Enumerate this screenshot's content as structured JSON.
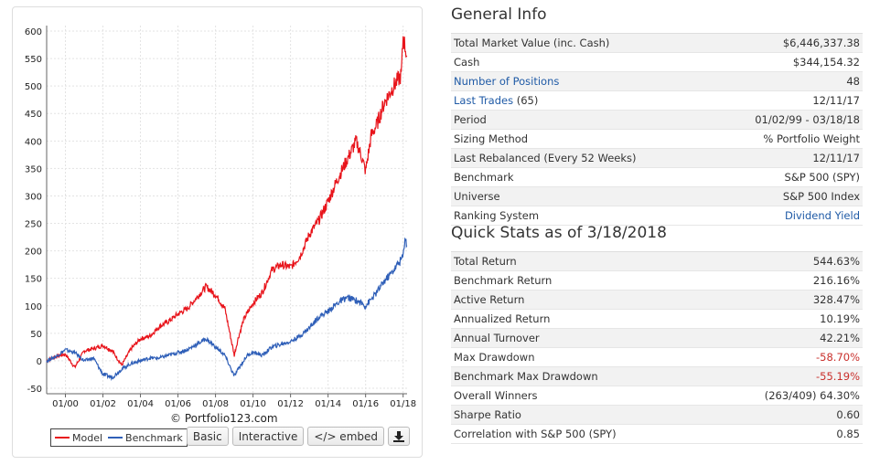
{
  "chart_data": {
    "type": "line",
    "credit": "© Portfolio123.com",
    "x_tick_labels": [
      "01/00",
      "01/02",
      "01/04",
      "01/06",
      "01/08",
      "01/10",
      "01/12",
      "01/14",
      "01/16",
      "01/18"
    ],
    "x_range": [
      "1999-01-02",
      "2018-03-18"
    ],
    "ylim": [
      -60,
      610
    ],
    "y_ticks": [
      -50,
      0,
      50,
      100,
      150,
      200,
      250,
      300,
      350,
      400,
      450,
      500,
      550,
      600
    ],
    "grid": true,
    "legend_position": "bottom-left",
    "series": [
      {
        "name": "Model",
        "color": "#e8141b",
        "points": [
          [
            1999.0,
            0
          ],
          [
            1999.5,
            8
          ],
          [
            2000.0,
            12
          ],
          [
            2000.5,
            -12
          ],
          [
            2001.0,
            18
          ],
          [
            2001.5,
            22
          ],
          [
            2002.0,
            28
          ],
          [
            2002.5,
            18
          ],
          [
            2003.0,
            -8
          ],
          [
            2003.5,
            22
          ],
          [
            2004.0,
            40
          ],
          [
            2004.5,
            45
          ],
          [
            2005.0,
            62
          ],
          [
            2005.5,
            72
          ],
          [
            2006.0,
            85
          ],
          [
            2006.5,
            95
          ],
          [
            2007.0,
            115
          ],
          [
            2007.5,
            135
          ],
          [
            2008.0,
            120
          ],
          [
            2008.5,
            95
          ],
          [
            2009.0,
            10
          ],
          [
            2009.2,
            40
          ],
          [
            2009.5,
            75
          ],
          [
            2010.0,
            105
          ],
          [
            2010.5,
            125
          ],
          [
            2011.0,
            165
          ],
          [
            2011.5,
            175
          ],
          [
            2012.0,
            170
          ],
          [
            2012.5,
            190
          ],
          [
            2013.0,
            230
          ],
          [
            2013.5,
            255
          ],
          [
            2014.0,
            290
          ],
          [
            2014.5,
            330
          ],
          [
            2015.0,
            365
          ],
          [
            2015.5,
            400
          ],
          [
            2015.8,
            370
          ],
          [
            2016.0,
            345
          ],
          [
            2016.3,
            410
          ],
          [
            2016.6,
            430
          ],
          [
            2017.0,
            470
          ],
          [
            2017.5,
            500
          ],
          [
            2017.9,
            520
          ],
          [
            2018.0,
            590
          ],
          [
            2018.2,
            555
          ]
        ]
      },
      {
        "name": "Benchmark",
        "color": "#2f5fb8",
        "points": [
          [
            1999.0,
            0
          ],
          [
            1999.5,
            8
          ],
          [
            2000.0,
            20
          ],
          [
            2000.5,
            15
          ],
          [
            2001.0,
            0
          ],
          [
            2001.5,
            5
          ],
          [
            2002.0,
            -25
          ],
          [
            2002.5,
            -30
          ],
          [
            2003.0,
            -15
          ],
          [
            2003.5,
            -5
          ],
          [
            2004.0,
            0
          ],
          [
            2004.5,
            5
          ],
          [
            2005.0,
            5
          ],
          [
            2005.5,
            10
          ],
          [
            2006.0,
            15
          ],
          [
            2006.5,
            20
          ],
          [
            2007.0,
            30
          ],
          [
            2007.5,
            40
          ],
          [
            2008.0,
            25
          ],
          [
            2008.5,
            10
          ],
          [
            2009.0,
            -28
          ],
          [
            2009.3,
            -10
          ],
          [
            2009.7,
            10
          ],
          [
            2010.0,
            15
          ],
          [
            2010.5,
            10
          ],
          [
            2011.0,
            25
          ],
          [
            2011.5,
            30
          ],
          [
            2012.0,
            35
          ],
          [
            2012.5,
            45
          ],
          [
            2013.0,
            60
          ],
          [
            2013.5,
            80
          ],
          [
            2014.0,
            90
          ],
          [
            2014.5,
            105
          ],
          [
            2015.0,
            115
          ],
          [
            2015.5,
            110
          ],
          [
            2016.0,
            100
          ],
          [
            2016.5,
            120
          ],
          [
            2017.0,
            145
          ],
          [
            2017.5,
            165
          ],
          [
            2018.0,
            190
          ],
          [
            2018.1,
            225
          ],
          [
            2018.2,
            210
          ]
        ]
      }
    ]
  },
  "buttons": {
    "basic": "Basic",
    "interactive": "Interactive",
    "embed": "</> embed",
    "download_icon": "download-icon"
  },
  "general": {
    "title": "General Info",
    "rows": [
      {
        "label": "Total Market Value (inc. Cash)",
        "value": "$6,446,337.38"
      },
      {
        "label": "Cash",
        "value": "$344,154.32"
      },
      {
        "label": "Number of Positions",
        "value": "48"
      },
      {
        "label": "Last Trades",
        "extra": " (65)",
        "value": "12/11/17"
      },
      {
        "label": "Period",
        "value": "01/02/99 - 03/18/18"
      },
      {
        "label": "Sizing Method",
        "value": "% Portfolio Weight"
      },
      {
        "label": "Last Rebalanced (Every 52 Weeks)",
        "value": "12/11/17"
      },
      {
        "label": "Benchmark",
        "value": "S&P 500 (SPY)"
      },
      {
        "label": "Universe",
        "value": "S&P 500 Index"
      },
      {
        "label": "Ranking System",
        "value": "Dividend Yield"
      }
    ]
  },
  "quick": {
    "title": "Quick Stats as of 3/18/2018",
    "rows": [
      {
        "label": "Total Return",
        "value": "544.63%"
      },
      {
        "label": "Benchmark Return",
        "value": "216.16%"
      },
      {
        "label": "Active Return",
        "value": "328.47%"
      },
      {
        "label": "Annualized Return",
        "value": "10.19%"
      },
      {
        "label": "Annual Turnover",
        "value": "42.21%"
      },
      {
        "label": "Max Drawdown",
        "value": "-58.70%"
      },
      {
        "label": "Benchmark Max Drawdown",
        "value": "-55.19%"
      },
      {
        "label": "Overall Winners",
        "value": "(263/409) 64.30%"
      },
      {
        "label": "Sharpe Ratio",
        "value": "0.60"
      },
      {
        "label": "Correlation with S&P 500 (SPY)",
        "value": "0.85"
      }
    ]
  }
}
